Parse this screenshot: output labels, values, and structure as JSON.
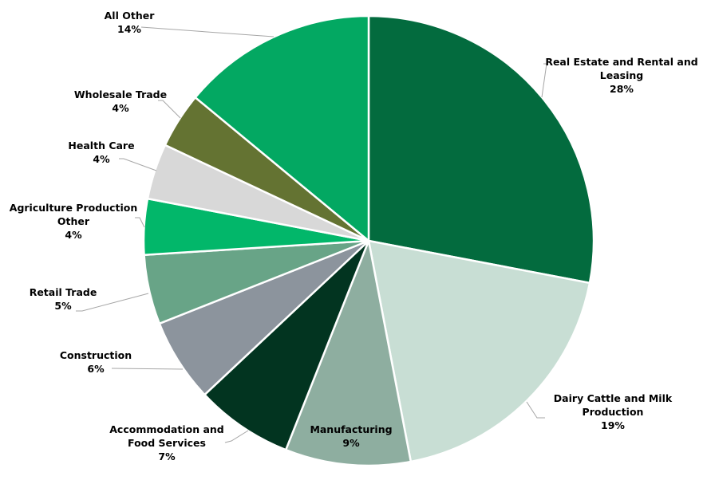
{
  "chart_data": {
    "type": "pie",
    "title": "",
    "start_angle_deg": 0,
    "direction": "clockwise",
    "slices": [
      {
        "label": "Real Estate and Rental and Leasing",
        "value": 28,
        "display": "28%",
        "color": "#036b3e"
      },
      {
        "label": "Dairy Cattle and Milk Production",
        "value": 19,
        "display": "19%",
        "color": "#c8ded4"
      },
      {
        "label": "Manufacturing",
        "value": 9,
        "display": "9%",
        "color": "#8eaea0"
      },
      {
        "label": "Accommodation and Food Services",
        "value": 7,
        "display": "7%",
        "color": "#023420"
      },
      {
        "label": "Construction",
        "value": 6,
        "display": "6%",
        "color": "#8c949d"
      },
      {
        "label": "Retail Trade",
        "value": 5,
        "display": "5%",
        "color": "#68a487"
      },
      {
        "label": "Agriculture Production Other",
        "value": 4,
        "display": "4%",
        "color": "#02b76a"
      },
      {
        "label": "Health Care",
        "value": 4,
        "display": "4%",
        "color": "#d8d8d8"
      },
      {
        "label": "Wholesale Trade",
        "value": 4,
        "display": "4%",
        "color": "#647332"
      },
      {
        "label": "All Other",
        "value": 14,
        "display": "14%",
        "color": "#03a862"
      }
    ]
  },
  "labels": {
    "real_estate": {
      "l1": "Real Estate and Rental and",
      "l2": "Leasing",
      "pct": "28%"
    },
    "dairy": {
      "l1": "Dairy Cattle and Milk",
      "l2": "Production",
      "pct": "19%"
    },
    "manufacturing": {
      "l1": "Manufacturing",
      "pct": "9%"
    },
    "accommodation": {
      "l1": "Accommodation and",
      "l2": "Food Services",
      "pct": "7%"
    },
    "construction": {
      "l1": "Construction",
      "pct": "6%"
    },
    "retail": {
      "l1": "Retail Trade",
      "pct": "5%"
    },
    "agriculture": {
      "l1": "Agriculture Production",
      "l2": "Other",
      "pct": "4%"
    },
    "health": {
      "l1": "Health Care",
      "pct": "4%"
    },
    "wholesale": {
      "l1": "Wholesale Trade",
      "pct": "4%"
    },
    "all_other": {
      "l1": "All Other",
      "pct": "14%"
    }
  }
}
